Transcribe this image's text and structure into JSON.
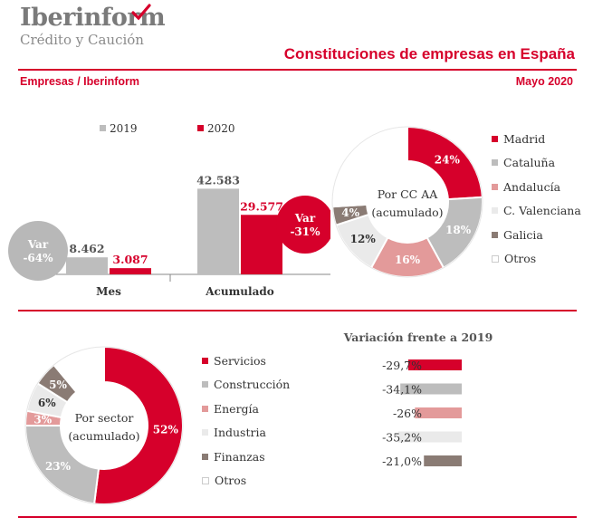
{
  "header": {
    "logo_name": "Iberinform",
    "logo_sub": "Crédito y Caución",
    "title": "Constituciones de empresas en España",
    "source": "Empresas / Iberinform",
    "date": "Mayo 2020"
  },
  "colors": {
    "red": "#d6002b",
    "gray": "#bdbdbd",
    "pink": "#e39a9a",
    "light": "#eaeaea",
    "brown": "#8a7b74",
    "white": "#ffffff",
    "var_gray_bubble": "#b8b8b8"
  },
  "chart_data": [
    {
      "type": "bar",
      "categories": [
        "Mes",
        "Acumulado"
      ],
      "series": [
        {
          "name": "2019",
          "values": [
            8462,
            42583
          ],
          "labels": [
            "8.462",
            "42.583"
          ],
          "color": "#bdbdbd"
        },
        {
          "name": "2020",
          "values": [
            3087,
            29577
          ],
          "labels": [
            "3.087",
            "29.577"
          ],
          "color": "#d6002b"
        }
      ],
      "annotations": [
        {
          "text": "Var\n-64%",
          "category": "Mes"
        },
        {
          "text": "Var\n-31%",
          "category": "Acumulado"
        }
      ],
      "ylim": [
        0,
        45000
      ],
      "legend": "top"
    },
    {
      "type": "pie",
      "donut": true,
      "center_label": "Por CC AA\n(acumulado)",
      "slices": [
        {
          "name": "Madrid",
          "value": 24,
          "label": "24%",
          "color": "#d6002b"
        },
        {
          "name": "Cataluña",
          "value": 18,
          "label": "18%",
          "color": "#bdbdbd"
        },
        {
          "name": "Andalucía",
          "value": 16,
          "label": "16%",
          "color": "#e39a9a"
        },
        {
          "name": "C. Valenciana",
          "value": 12,
          "label": "12%",
          "color": "#eaeaea"
        },
        {
          "name": "Galicia",
          "value": 4,
          "label": "4%",
          "color": "#8a7b74"
        },
        {
          "name": "Otros",
          "value": 26,
          "label": "",
          "color": "#ffffff"
        }
      ],
      "legend": "right"
    },
    {
      "type": "pie",
      "donut": true,
      "center_label": "Por sector\n(acumulado)",
      "slices": [
        {
          "name": "Servicios",
          "value": 52,
          "label": "52%",
          "color": "#d6002b"
        },
        {
          "name": "Construcción",
          "value": 23,
          "label": "23%",
          "color": "#bdbdbd"
        },
        {
          "name": "Energía",
          "value": 3,
          "label": "3%",
          "color": "#e39a9a"
        },
        {
          "name": "Industria",
          "value": 6,
          "label": "6%",
          "color": "#eaeaea"
        },
        {
          "name": "Finanzas",
          "value": 5,
          "label": "5%",
          "color": "#8a7b74"
        },
        {
          "name": "Otros",
          "value": 11,
          "label": "",
          "color": "#ffffff"
        }
      ],
      "legend": "right"
    },
    {
      "type": "bar",
      "orientation": "horizontal",
      "title": "Variación frente a 2019",
      "categories": [
        "Servicios",
        "Construcción",
        "Energía",
        "Industria",
        "Finanzas"
      ],
      "values": [
        -29.7,
        -34.1,
        -26,
        -35.2,
        -21.0
      ],
      "labels": [
        "-29,7%",
        "-34,1%",
        "-26%",
        "-35,2%",
        "-21,0%"
      ],
      "colors": [
        "#d6002b",
        "#bdbdbd",
        "#e39a9a",
        "#eaeaea",
        "#8a7b74"
      ]
    }
  ]
}
